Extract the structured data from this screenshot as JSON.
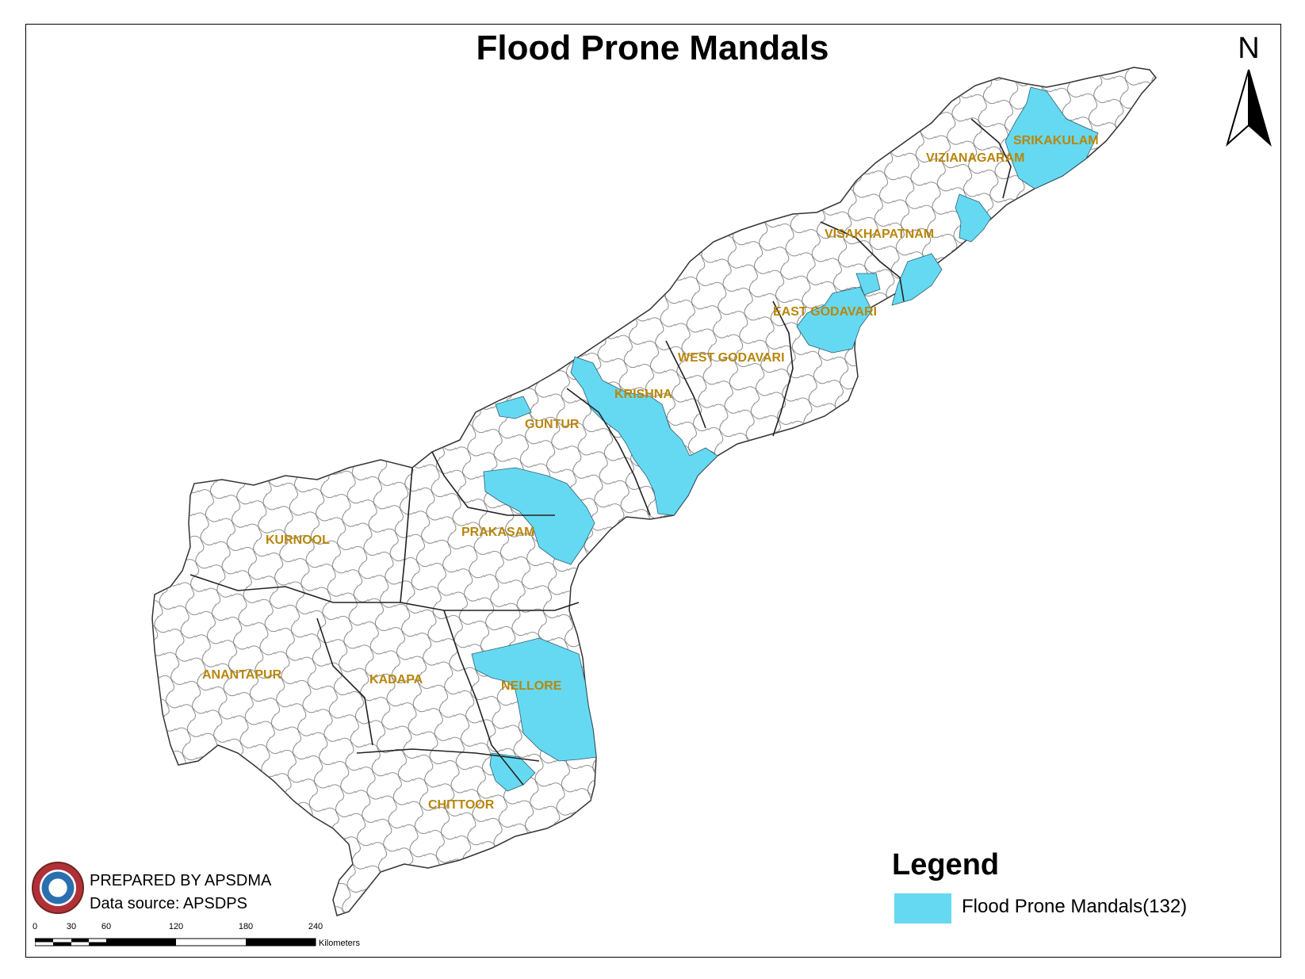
{
  "map": {
    "title": "Flood Prone Mandals",
    "north_arrow": "N",
    "districts": [
      {
        "name": "SRIKAKULAM"
      },
      {
        "name": "VIZIANAGARAM"
      },
      {
        "name": "VISAKHAPATNAM"
      },
      {
        "name": "EAST GODAVARI"
      },
      {
        "name": "WEST GODAVARI"
      },
      {
        "name": "KRISHNA"
      },
      {
        "name": "GUNTUR"
      },
      {
        "name": "PRAKASAM"
      },
      {
        "name": "KURNOOL"
      },
      {
        "name": "ANANTAPUR"
      },
      {
        "name": "KADAPA"
      },
      {
        "name": "NELLORE"
      },
      {
        "name": "CHITTOOR"
      }
    ],
    "colors": {
      "flood_prone": "#66d9f2",
      "label": "#b8860b",
      "boundary": "#555555"
    }
  },
  "legend": {
    "title": "Legend",
    "item": "Flood Prone Mandals(132)"
  },
  "credits": {
    "prepared_by": "PREPARED BY APSDMA",
    "data_source": "Data source: APSDPS",
    "logo": "apsdma-logo"
  },
  "scale": {
    "ticks": [
      "0",
      "30",
      "60",
      "120",
      "180",
      "240"
    ],
    "unit": "Kilometers"
  }
}
